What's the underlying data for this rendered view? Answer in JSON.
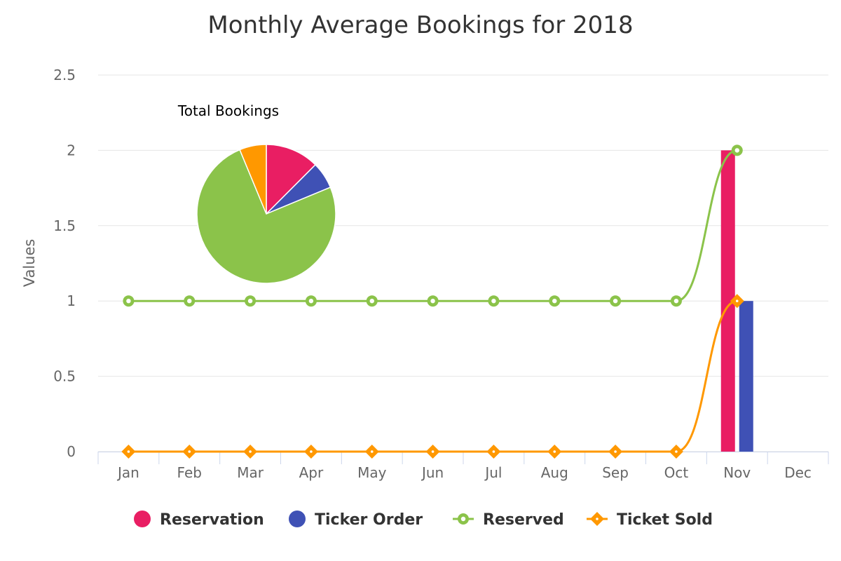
{
  "chart_data": [
    {
      "type": "bar+line",
      "title": "Monthly Average Bookings for 2018",
      "xlabel": "",
      "ylabel": "Values",
      "ylim": [
        0,
        2.5
      ],
      "yticks": [
        "0",
        "0.5",
        "1",
        "1.5",
        "2",
        "2.5"
      ],
      "categories": [
        "Jan",
        "Feb",
        "Mar",
        "Apr",
        "May",
        "Jun",
        "Jul",
        "Aug",
        "Sep",
        "Oct",
        "Nov",
        "Dec"
      ],
      "grid": true,
      "legend_position": "bottom",
      "series": [
        {
          "name": "Reservation",
          "type": "bar",
          "color": "#e91e63",
          "values": [
            0,
            0,
            0,
            0,
            0,
            0,
            0,
            0,
            0,
            0,
            2,
            0
          ]
        },
        {
          "name": "Ticker Order",
          "type": "bar",
          "color": "#3f51b5",
          "values": [
            0,
            0,
            0,
            0,
            0,
            0,
            0,
            0,
            0,
            0,
            1,
            0
          ]
        },
        {
          "name": "Reserved",
          "type": "line",
          "marker": "circle",
          "color": "#8bc34a",
          "values": [
            1,
            1,
            1,
            1,
            1,
            1,
            1,
            1,
            1,
            1,
            2,
            null
          ]
        },
        {
          "name": "Ticket Sold",
          "type": "line",
          "marker": "diamond",
          "color": "#ff9800",
          "values": [
            0,
            0,
            0,
            0,
            0,
            0,
            0,
            0,
            0,
            0,
            1,
            null
          ]
        }
      ]
    },
    {
      "type": "pie",
      "title": "Total Bookings",
      "slices": [
        {
          "name": "Reservation",
          "value": 2,
          "color": "#e91e63"
        },
        {
          "name": "Ticker Order",
          "value": 1,
          "color": "#3f51b5"
        },
        {
          "name": "Reserved",
          "value": 12,
          "color": "#8bc34a"
        },
        {
          "name": "Ticket Sold",
          "value": 1,
          "color": "#ff9800"
        }
      ]
    }
  ]
}
